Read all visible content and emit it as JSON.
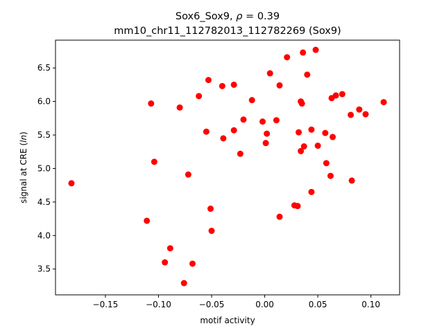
{
  "chart_data": {
    "type": "scatter",
    "title_line1_prefix": "Sox6_Sox9, ",
    "title_line1_rho": "ρ",
    "title_line1_suffix": " = 0.39",
    "title_line2": "mm10_chr11_112782013_112782269 (Sox9)",
    "xlabel": "motif activity",
    "ylabel_prefix": "signal at CRE (",
    "ylabel_ital": "ln",
    "ylabel_suffix": ")",
    "xlim": [
      -0.197,
      0.127
    ],
    "ylim": [
      3.115,
      6.915
    ],
    "xticks": [
      -0.15,
      -0.1,
      -0.05,
      0.0,
      0.05,
      0.1
    ],
    "xtick_labels": [
      "−0.15",
      "−0.10",
      "−0.05",
      "0.00",
      "0.05",
      "0.10"
    ],
    "yticks": [
      3.5,
      4.0,
      4.5,
      5.0,
      5.5,
      6.0,
      6.5
    ],
    "ytick_labels": [
      "3.5",
      "4.0",
      "4.5",
      "5.0",
      "5.5",
      "6.0",
      "6.5"
    ],
    "point_color": "#ff0000",
    "grid": false,
    "points": [
      {
        "x": -0.182,
        "y": 4.78
      },
      {
        "x": -0.111,
        "y": 4.22
      },
      {
        "x": -0.107,
        "y": 5.97
      },
      {
        "x": -0.104,
        "y": 5.1
      },
      {
        "x": -0.094,
        "y": 3.6
      },
      {
        "x": -0.089,
        "y": 3.81
      },
      {
        "x": -0.08,
        "y": 5.91
      },
      {
        "x": -0.076,
        "y": 3.29
      },
      {
        "x": -0.072,
        "y": 4.91
      },
      {
        "x": -0.068,
        "y": 3.58
      },
      {
        "x": -0.062,
        "y": 6.08
      },
      {
        "x": -0.055,
        "y": 5.55
      },
      {
        "x": -0.053,
        "y": 6.32
      },
      {
        "x": -0.051,
        "y": 4.4
      },
      {
        "x": -0.05,
        "y": 4.07
      },
      {
        "x": -0.04,
        "y": 6.23
      },
      {
        "x": -0.039,
        "y": 5.45
      },
      {
        "x": -0.029,
        "y": 6.25
      },
      {
        "x": -0.029,
        "y": 5.57
      },
      {
        "x": -0.023,
        "y": 5.22
      },
      {
        "x": -0.02,
        "y": 5.73
      },
      {
        "x": -0.012,
        "y": 6.02
      },
      {
        "x": -0.002,
        "y": 5.7
      },
      {
        "x": 0.001,
        "y": 5.38
      },
      {
        "x": 0.002,
        "y": 5.52
      },
      {
        "x": 0.005,
        "y": 6.42
      },
      {
        "x": 0.011,
        "y": 5.72
      },
      {
        "x": 0.014,
        "y": 6.24
      },
      {
        "x": 0.014,
        "y": 4.28
      },
      {
        "x": 0.021,
        "y": 6.66
      },
      {
        "x": 0.028,
        "y": 4.45
      },
      {
        "x": 0.031,
        "y": 4.44
      },
      {
        "x": 0.032,
        "y": 5.54
      },
      {
        "x": 0.034,
        "y": 5.26
      },
      {
        "x": 0.034,
        "y": 6.0
      },
      {
        "x": 0.035,
        "y": 5.97
      },
      {
        "x": 0.036,
        "y": 6.73
      },
      {
        "x": 0.037,
        "y": 5.33
      },
      {
        "x": 0.04,
        "y": 6.4
      },
      {
        "x": 0.044,
        "y": 5.58
      },
      {
        "x": 0.044,
        "y": 4.65
      },
      {
        "x": 0.048,
        "y": 6.77
      },
      {
        "x": 0.05,
        "y": 5.34
      },
      {
        "x": 0.057,
        "y": 5.53
      },
      {
        "x": 0.058,
        "y": 5.08
      },
      {
        "x": 0.062,
        "y": 4.89
      },
      {
        "x": 0.063,
        "y": 6.05
      },
      {
        "x": 0.064,
        "y": 5.47
      },
      {
        "x": 0.067,
        "y": 6.09
      },
      {
        "x": 0.073,
        "y": 6.11
      },
      {
        "x": 0.081,
        "y": 5.8
      },
      {
        "x": 0.082,
        "y": 4.82
      },
      {
        "x": 0.089,
        "y": 5.88
      },
      {
        "x": 0.095,
        "y": 5.81
      },
      {
        "x": 0.112,
        "y": 5.99
      }
    ]
  }
}
